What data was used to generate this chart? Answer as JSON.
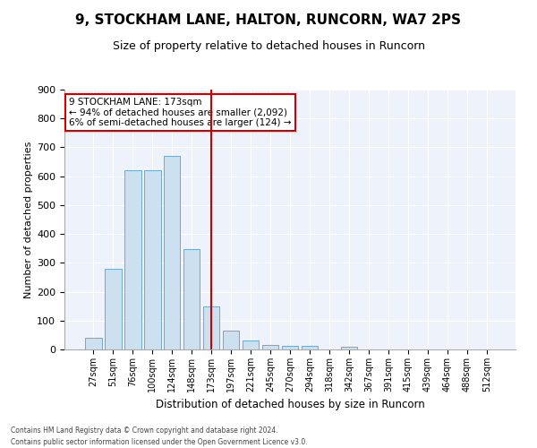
{
  "title": "9, STOCKHAM LANE, HALTON, RUNCORN, WA7 2PS",
  "subtitle": "Size of property relative to detached houses in Runcorn",
  "xlabel": "Distribution of detached houses by size in Runcorn",
  "ylabel": "Number of detached properties",
  "bar_labels": [
    "27sqm",
    "51sqm",
    "76sqm",
    "100sqm",
    "124sqm",
    "148sqm",
    "173sqm",
    "197sqm",
    "221sqm",
    "245sqm",
    "270sqm",
    "294sqm",
    "318sqm",
    "342sqm",
    "367sqm",
    "391sqm",
    "415sqm",
    "439sqm",
    "464sqm",
    "488sqm",
    "512sqm"
  ],
  "bar_heights": [
    40,
    278,
    620,
    622,
    670,
    348,
    150,
    65,
    30,
    15,
    12,
    12,
    0,
    10,
    0,
    0,
    0,
    0,
    0,
    0,
    0
  ],
  "bar_color": "#cce0f0",
  "bar_edgecolor": "#6aaad4",
  "highlight_index": 6,
  "highlight_color": "#cc0000",
  "annotation_line1": "9 STOCKHAM LANE: 173sqm",
  "annotation_line2": "← 94% of detached houses are smaller (2,092)",
  "annotation_line3": "6% of semi-detached houses are larger (124) →",
  "annotation_box_color": "#ffffff",
  "annotation_box_edgecolor": "#cc0000",
  "footer_line1": "Contains HM Land Registry data © Crown copyright and database right 2024.",
  "footer_line2": "Contains public sector information licensed under the Open Government Licence v3.0.",
  "background_color": "#eef2fa",
  "ylim": [
    0,
    900
  ],
  "yticks": [
    0,
    100,
    200,
    300,
    400,
    500,
    600,
    700,
    800,
    900
  ],
  "title_fontsize": 11,
  "subtitle_fontsize": 9,
  "tick_fontsize": 7,
  "ylabel_fontsize": 8,
  "xlabel_fontsize": 8.5
}
